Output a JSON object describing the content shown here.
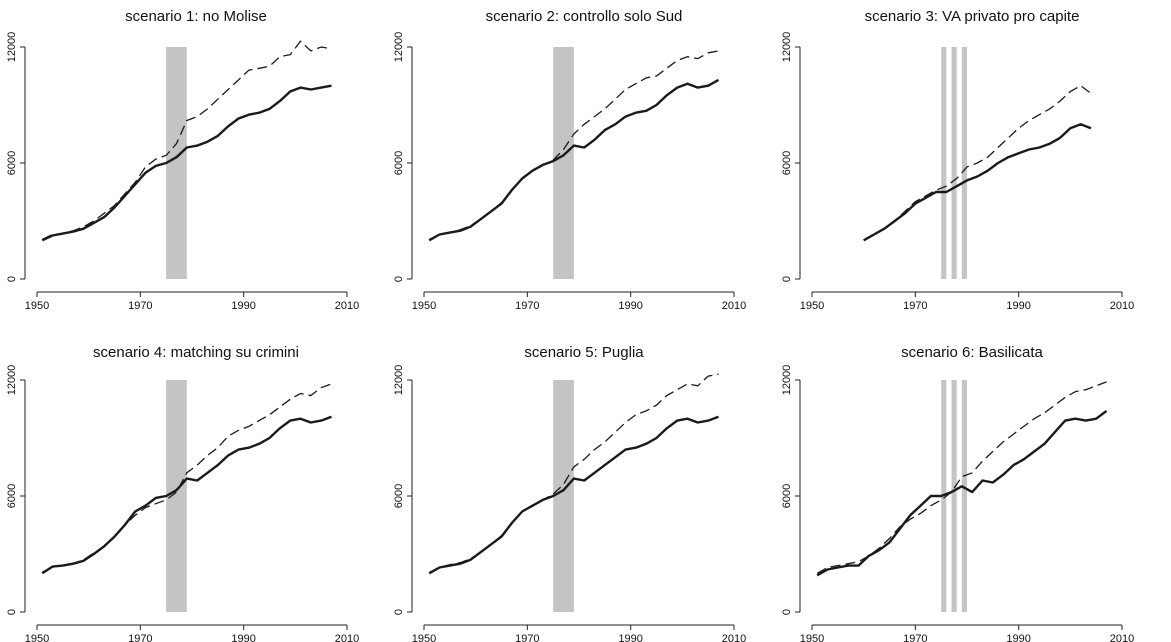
{
  "chart_data": [
    {
      "type": "line",
      "title": "scenario 1: no Molise",
      "xlim": [
        1950,
        2010
      ],
      "ylim": [
        0,
        12000
      ],
      "xticks": [
        "1950",
        "1970",
        "1990",
        "2010"
      ],
      "yticks": [
        "0",
        "6000",
        "12000"
      ],
      "shaded_period": [
        [
          1975,
          1979
        ]
      ],
      "series": [
        {
          "style": "solid",
          "x": [
            1951,
            1953,
            1955,
            1957,
            1959,
            1961,
            1963,
            1965,
            1967,
            1969,
            1971,
            1973,
            1975,
            1977,
            1979,
            1981,
            1983,
            1985,
            1987,
            1989,
            1991,
            1993,
            1995,
            1997,
            1999,
            2001,
            2003,
            2005,
            2007
          ],
          "values": [
            2000,
            2250,
            2350,
            2450,
            2600,
            2900,
            3200,
            3700,
            4300,
            4900,
            5500,
            5850,
            6000,
            6300,
            6800,
            6900,
            7100,
            7400,
            7900,
            8300,
            8500,
            8600,
            8800,
            9200,
            9700,
            9900,
            9800,
            9900,
            10000
          ]
        },
        {
          "style": "dashed",
          "x": [
            1951,
            1953,
            1955,
            1957,
            1959,
            1961,
            1963,
            1965,
            1967,
            1969,
            1971,
            1973,
            1975,
            1977,
            1979,
            1981,
            1983,
            1985,
            1987,
            1989,
            1991,
            1993,
            1995,
            1997,
            1999,
            2001,
            2003,
            2005,
            2007
          ],
          "values": [
            2050,
            2300,
            2350,
            2500,
            2700,
            3000,
            3400,
            3800,
            4400,
            5000,
            5800,
            6200,
            6400,
            7000,
            8200,
            8400,
            8800,
            9300,
            9800,
            10300,
            10800,
            10900,
            11000,
            11500,
            11600,
            12300,
            11800,
            12000,
            11900
          ]
        }
      ]
    },
    {
      "type": "line",
      "title": "scenario 2: controllo solo Sud",
      "xlim": [
        1950,
        2010
      ],
      "ylim": [
        0,
        12000
      ],
      "xticks": [
        "1950",
        "1970",
        "1990",
        "2010"
      ],
      "yticks": [
        "0",
        "6000",
        "12000"
      ],
      "shaded_period": [
        [
          1975,
          1979
        ]
      ],
      "series": [
        {
          "style": "solid",
          "x": [
            1951,
            1953,
            1955,
            1957,
            1959,
            1961,
            1963,
            1965,
            1967,
            1969,
            1971,
            1973,
            1975,
            1977,
            1979,
            1981,
            1983,
            1985,
            1987,
            1989,
            1991,
            1993,
            1995,
            1997,
            1999,
            2001,
            2003,
            2005,
            2007
          ],
          "values": [
            2000,
            2300,
            2400,
            2500,
            2700,
            3100,
            3500,
            3900,
            4600,
            5200,
            5600,
            5900,
            6100,
            6400,
            6900,
            6800,
            7200,
            7700,
            8000,
            8400,
            8600,
            8700,
            9000,
            9500,
            9900,
            10100,
            9900,
            10000,
            10300
          ]
        },
        {
          "style": "dashed",
          "x": [
            1951,
            1953,
            1955,
            1957,
            1959,
            1961,
            1963,
            1965,
            1967,
            1969,
            1971,
            1973,
            1975,
            1977,
            1979,
            1981,
            1983,
            1985,
            1987,
            1989,
            1991,
            1993,
            1995,
            1997,
            1999,
            2001,
            2003,
            2005,
            2007
          ],
          "values": [
            2050,
            2300,
            2400,
            2550,
            2750,
            3100,
            3500,
            3950,
            4600,
            5200,
            5600,
            5900,
            6150,
            6700,
            7500,
            8000,
            8400,
            8800,
            9300,
            9800,
            10100,
            10400,
            10500,
            10900,
            11300,
            11500,
            11400,
            11700,
            11800
          ]
        }
      ]
    },
    {
      "type": "line",
      "title": "scenario 3: VA privato pro capite",
      "xlim": [
        1950,
        2010
      ],
      "ylim": [
        0,
        12000
      ],
      "xticks": [
        "1950",
        "1970",
        "1990",
        "2010"
      ],
      "yticks": [
        "0",
        "6000",
        "12000"
      ],
      "shaded_period": [
        [
          1975,
          1976
        ],
        [
          1977,
          1978
        ],
        [
          1979,
          1980
        ]
      ],
      "series": [
        {
          "style": "solid",
          "x": [
            1960,
            1962,
            1964,
            1966,
            1968,
            1970,
            1972,
            1974,
            1976,
            1978,
            1980,
            1982,
            1984,
            1986,
            1988,
            1990,
            1992,
            1994,
            1996,
            1998,
            2000,
            2002,
            2004
          ],
          "values": [
            2000,
            2300,
            2600,
            3000,
            3400,
            3900,
            4200,
            4500,
            4500,
            4800,
            5100,
            5300,
            5600,
            6000,
            6300,
            6500,
            6700,
            6800,
            7000,
            7300,
            7800,
            8000,
            7800
          ]
        },
        {
          "style": "dashed",
          "x": [
            1960,
            1962,
            1964,
            1966,
            1968,
            1970,
            1972,
            1974,
            1976,
            1978,
            1980,
            1982,
            1984,
            1986,
            1988,
            1990,
            1992,
            1994,
            1996,
            1998,
            2000,
            2002,
            2004
          ],
          "values": [
            2000,
            2300,
            2600,
            3000,
            3500,
            4000,
            4300,
            4600,
            4800,
            5200,
            5800,
            6000,
            6300,
            6800,
            7300,
            7800,
            8200,
            8500,
            8800,
            9200,
            9700,
            10000,
            9600
          ]
        }
      ]
    },
    {
      "type": "line",
      "title": "scenario 4: matching su crimini",
      "xlim": [
        1950,
        2010
      ],
      "ylim": [
        0,
        12000
      ],
      "xticks": [
        "1950",
        "1970",
        "1990",
        "2010"
      ],
      "yticks": [
        "0",
        "6000",
        "12000"
      ],
      "shaded_period": [
        [
          1975,
          1979
        ]
      ],
      "series": [
        {
          "style": "solid",
          "x": [
            1951,
            1953,
            1955,
            1957,
            1959,
            1961,
            1963,
            1965,
            1967,
            1969,
            1971,
            1973,
            1975,
            1977,
            1979,
            1981,
            1983,
            1985,
            1987,
            1989,
            1991,
            1993,
            1995,
            1997,
            1999,
            2001,
            2003,
            2005,
            2007
          ],
          "values": [
            2000,
            2350,
            2400,
            2500,
            2650,
            3000,
            3400,
            3900,
            4500,
            5200,
            5500,
            5900,
            6000,
            6300,
            6900,
            6800,
            7200,
            7600,
            8100,
            8400,
            8500,
            8700,
            9000,
            9500,
            9900,
            10000,
            9800,
            9900,
            10100
          ]
        },
        {
          "style": "dashed",
          "x": [
            1951,
            1953,
            1955,
            1957,
            1959,
            1961,
            1963,
            1965,
            1967,
            1969,
            1971,
            1973,
            1975,
            1977,
            1979,
            1981,
            1983,
            1985,
            1987,
            1989,
            1991,
            1993,
            1995,
            1997,
            1999,
            2001,
            2003,
            2005,
            2007
          ],
          "values": [
            2050,
            2350,
            2400,
            2500,
            2700,
            3050,
            3400,
            3900,
            4500,
            5000,
            5400,
            5600,
            5800,
            6200,
            7200,
            7600,
            8100,
            8500,
            9100,
            9400,
            9600,
            9900,
            10200,
            10600,
            11000,
            11300,
            11200,
            11600,
            11800
          ]
        }
      ]
    },
    {
      "type": "line",
      "title": "scenario 5: Puglia",
      "xlim": [
        1950,
        2010
      ],
      "ylim": [
        0,
        12000
      ],
      "xticks": [
        "1950",
        "1970",
        "1990",
        "2010"
      ],
      "yticks": [
        "0",
        "6000",
        "12000"
      ],
      "shaded_period": [
        [
          1975,
          1979
        ]
      ],
      "series": [
        {
          "style": "solid",
          "x": [
            1951,
            1953,
            1955,
            1957,
            1959,
            1961,
            1963,
            1965,
            1967,
            1969,
            1971,
            1973,
            1975,
            1977,
            1979,
            1981,
            1983,
            1985,
            1987,
            1989,
            1991,
            1993,
            1995,
            1997,
            1999,
            2001,
            2003,
            2005,
            2007
          ],
          "values": [
            2000,
            2300,
            2400,
            2500,
            2700,
            3100,
            3500,
            3900,
            4600,
            5200,
            5500,
            5800,
            6000,
            6300,
            6900,
            6800,
            7200,
            7600,
            8000,
            8400,
            8500,
            8700,
            9000,
            9500,
            9900,
            10000,
            9800,
            9900,
            10100
          ]
        },
        {
          "style": "dashed",
          "x": [
            1951,
            1953,
            1955,
            1957,
            1959,
            1961,
            1963,
            1965,
            1967,
            1969,
            1971,
            1973,
            1975,
            1977,
            1979,
            1981,
            1983,
            1985,
            1987,
            1989,
            1991,
            1993,
            1995,
            1997,
            1999,
            2001,
            2003,
            2005,
            2007
          ],
          "values": [
            2050,
            2300,
            2450,
            2550,
            2750,
            3100,
            3500,
            3950,
            4600,
            5200,
            5500,
            5800,
            6100,
            6600,
            7500,
            7900,
            8400,
            8800,
            9300,
            9800,
            10200,
            10400,
            10700,
            11200,
            11500,
            11800,
            11700,
            12200,
            12300
          ]
        }
      ]
    },
    {
      "type": "line",
      "title": "scenario 6: Basilicata",
      "xlim": [
        1950,
        2010
      ],
      "ylim": [
        0,
        12000
      ],
      "xticks": [
        "1950",
        "1970",
        "1990",
        "2010"
      ],
      "yticks": [
        "0",
        "6000",
        "12000"
      ],
      "shaded_period": [
        [
          1975,
          1976
        ],
        [
          1977,
          1978
        ],
        [
          1979,
          1980
        ]
      ],
      "series": [
        {
          "style": "solid",
          "x": [
            1951,
            1953,
            1955,
            1957,
            1959,
            1961,
            1963,
            1965,
            1967,
            1969,
            1971,
            1973,
            1975,
            1977,
            1979,
            1981,
            1983,
            1985,
            1987,
            1989,
            1991,
            1993,
            1995,
            1997,
            1999,
            2001,
            2003,
            2005,
            2007
          ],
          "values": [
            1900,
            2200,
            2300,
            2400,
            2400,
            2900,
            3200,
            3600,
            4300,
            5000,
            5500,
            6000,
            6000,
            6200,
            6500,
            6200,
            6800,
            6700,
            7100,
            7600,
            7900,
            8300,
            8700,
            9300,
            9900,
            10000,
            9900,
            10000,
            10400
          ]
        },
        {
          "style": "dashed",
          "x": [
            1951,
            1953,
            1955,
            1957,
            1959,
            1961,
            1963,
            1965,
            1967,
            1969,
            1971,
            1973,
            1975,
            1977,
            1979,
            1981,
            1983,
            1985,
            1987,
            1989,
            1991,
            1993,
            1995,
            1997,
            1999,
            2001,
            2003,
            2005,
            2007
          ],
          "values": [
            2000,
            2300,
            2400,
            2500,
            2600,
            2900,
            3300,
            3800,
            4400,
            4800,
            5100,
            5500,
            5800,
            6200,
            7000,
            7200,
            7800,
            8300,
            8800,
            9200,
            9600,
            10000,
            10300,
            10700,
            11100,
            11400,
            11500,
            11700,
            11900
          ]
        }
      ]
    }
  ]
}
